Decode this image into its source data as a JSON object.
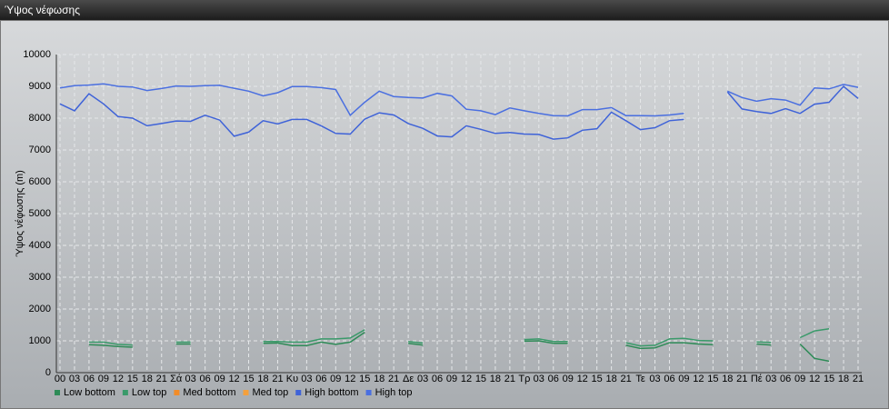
{
  "chart_data": {
    "type": "line",
    "title": "Ύψος νέφωσης",
    "y_label": "Ύψος νέφωσης (m)",
    "categories": [
      "00",
      "03",
      "06",
      "09",
      "12",
      "15",
      "18",
      "21",
      "Σά",
      "03",
      "06",
      "09",
      "12",
      "15",
      "18",
      "21",
      "Κυ",
      "03",
      "06",
      "09",
      "12",
      "15",
      "18",
      "21",
      "Δε",
      "03",
      "06",
      "09",
      "12",
      "15",
      "18",
      "21",
      "Τρ",
      "03",
      "06",
      "09",
      "12",
      "15",
      "18",
      "21",
      "Τε",
      "03",
      "06",
      "09",
      "12",
      "15",
      "18",
      "21",
      "Πέ",
      "03",
      "06",
      "09",
      "12",
      "15",
      "18",
      "21"
    ],
    "ylim": [
      0,
      10000
    ],
    "yticks": [
      0,
      1000,
      2000,
      3000,
      4000,
      5000,
      6000,
      7000,
      8000,
      9000,
      10000
    ],
    "grid": true,
    "legend": "bottom-left",
    "series": [
      {
        "name": "Low bottom",
        "color": "#2e8b57",
        "values": [
          null,
          null,
          880,
          860,
          820,
          800,
          null,
          null,
          900,
          900,
          null,
          null,
          null,
          null,
          920,
          930,
          850,
          850,
          960,
          890,
          960,
          1270,
          null,
          null,
          920,
          870,
          null,
          null,
          null,
          null,
          null,
          null,
          990,
          1000,
          920,
          920,
          null,
          null,
          null,
          860,
          760,
          780,
          940,
          940,
          900,
          880,
          null,
          null,
          900,
          870,
          null,
          900,
          450,
          360,
          null,
          null
        ]
      },
      {
        "name": "Low top",
        "color": "#3a9a6a",
        "values": [
          null,
          null,
          960,
          960,
          890,
          870,
          null,
          null,
          960,
          960,
          null,
          null,
          null,
          null,
          980,
          980,
          960,
          960,
          1060,
          1060,
          1090,
          1350,
          null,
          null,
          980,
          930,
          null,
          null,
          null,
          null,
          null,
          null,
          1040,
          1060,
          980,
          980,
          null,
          null,
          null,
          940,
          840,
          860,
          1060,
          1080,
          1010,
          1000,
          null,
          null,
          970,
          950,
          null,
          1100,
          1310,
          1380,
          null,
          null
        ]
      },
      {
        "name": "Med bottom",
        "color": "#f28c28",
        "values": [
          null,
          null,
          null,
          null,
          null,
          null,
          null,
          null,
          null,
          null,
          null,
          null,
          null,
          null,
          null,
          null,
          null,
          null,
          null,
          null,
          null,
          null,
          null,
          null,
          null,
          null,
          null,
          null,
          null,
          null,
          null,
          null,
          null,
          null,
          null,
          null,
          null,
          null,
          null,
          null,
          null,
          null,
          null,
          null,
          null,
          null,
          null,
          null,
          null,
          null,
          null,
          null,
          null,
          null,
          null,
          null
        ]
      },
      {
        "name": "Med top",
        "color": "#f5a03c",
        "values": [
          null,
          null,
          null,
          null,
          null,
          null,
          null,
          null,
          null,
          null,
          null,
          null,
          null,
          null,
          null,
          null,
          null,
          null,
          null,
          null,
          null,
          null,
          null,
          null,
          null,
          null,
          null,
          null,
          null,
          null,
          null,
          null,
          null,
          null,
          null,
          null,
          null,
          null,
          null,
          null,
          null,
          null,
          null,
          null,
          null,
          null,
          null,
          null,
          null,
          null,
          null,
          null,
          null,
          null,
          null,
          null
        ]
      },
      {
        "name": "High bottom",
        "color": "#3f63d8",
        "values": [
          8450,
          8230,
          8770,
          8450,
          8050,
          8000,
          7760,
          7830,
          7910,
          7900,
          8090,
          7940,
          7430,
          7560,
          7920,
          7820,
          7960,
          7960,
          7760,
          7520,
          7500,
          7970,
          8170,
          8100,
          7830,
          7680,
          7440,
          7410,
          7760,
          7650,
          7520,
          7550,
          7500,
          7490,
          7340,
          7380,
          7620,
          7670,
          8190,
          7920,
          7640,
          7700,
          7920,
          7960,
          null,
          null,
          8820,
          8290,
          8210,
          8150,
          8300,
          8150,
          8440,
          8500,
          9000,
          8620
        ]
      },
      {
        "name": "High top",
        "color": "#4a6fe0",
        "values": [
          8950,
          9020,
          9040,
          9080,
          9000,
          8980,
          8870,
          8930,
          9010,
          9000,
          9020,
          9030,
          8940,
          8850,
          8700,
          8800,
          8990,
          8990,
          8960,
          8900,
          8090,
          8500,
          8850,
          8680,
          8650,
          8630,
          8780,
          8700,
          8280,
          8230,
          8110,
          8320,
          8230,
          8150,
          8080,
          8070,
          8270,
          8270,
          8330,
          8080,
          8080,
          8070,
          8100,
          8150,
          null,
          null,
          8850,
          8650,
          8530,
          8610,
          8570,
          8410,
          8950,
          8920,
          9060,
          8970
        ]
      }
    ]
  }
}
